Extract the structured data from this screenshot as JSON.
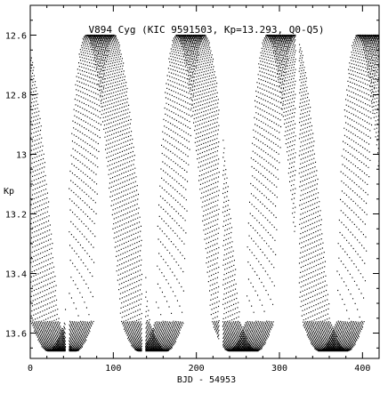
{
  "chart_data": {
    "type": "scatter",
    "title": "V894 Cyg (KIC 9591503, Kp=13.293, Q0-Q5)",
    "xlabel": "BJD - 54953",
    "ylabel": "Kp",
    "xlim": [
      0,
      420
    ],
    "ylim": [
      13.685,
      12.5
    ],
    "y_inverted": true,
    "x_ticks": [
      0,
      100,
      200,
      300,
      400
    ],
    "x_tick_labels": [
      "0",
      "100",
      "200",
      "300",
      "400"
    ],
    "y_ticks": [
      12.6,
      12.8,
      13.0,
      13.2,
      13.4,
      13.6
    ],
    "y_tick_labels": [
      "12.6",
      "12.8",
      "13",
      "13.2",
      "13.4",
      "13.6"
    ],
    "grid": false,
    "legend": "none",
    "colors": {
      "marker": "#000000",
      "frame": "#000000",
      "background": "#ffffff"
    },
    "light_curve_model": {
      "max_brightness_kp": 12.6,
      "min_brightness_kp": 13.56,
      "eclipse_depth_kp": 0.1,
      "eclipse_floor_kp": 13.66,
      "cycle_length_days": 8.95,
      "eclipse_width_days": 3.4,
      "trace_spacing_days": 4.5,
      "quarter_gaps_days": [
        44,
        136,
        229,
        321
      ]
    }
  }
}
